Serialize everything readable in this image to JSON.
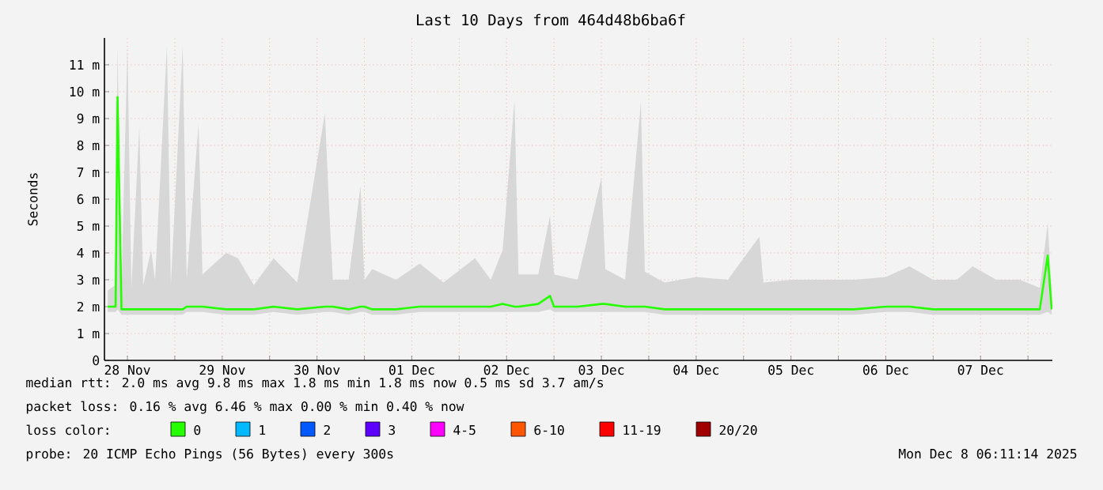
{
  "chart_data": {
    "type": "line",
    "title": "Last 10 Days from 464d48b6ba6f",
    "ylabel": "Seconds",
    "x": [
      "2025-11-28T07:00",
      "2025-11-28T09:00",
      "2025-11-28T09:30",
      "2025-11-28T10:30",
      "2025-11-28T12:00",
      "2025-11-28T13:00",
      "2025-11-28T15:00",
      "2025-11-28T16:00",
      "2025-11-28T18:00",
      "2025-11-28T19:00",
      "2025-11-28T22:00",
      "2025-11-28T23:00",
      "2025-11-29T02:00",
      "2025-11-29T03:00",
      "2025-11-29T06:00",
      "2025-11-29T07:00",
      "2025-11-29T13:00",
      "2025-11-29T16:00",
      "2025-11-29T20:00",
      "2025-11-30T01:00",
      "2025-11-30T07:00",
      "2025-11-30T14:00",
      "2025-11-30T15:00",
      "2025-11-30T16:00",
      "2025-11-30T20:00",
      "2025-11-30T23:00",
      "2025-12-01T00:00",
      "2025-12-01T02:00",
      "2025-12-01T08:00",
      "2025-12-01T14:00",
      "2025-12-01T20:00",
      "2025-12-02T04:00",
      "2025-12-02T08:00",
      "2025-12-02T11:00",
      "2025-12-02T14:00",
      "2025-12-02T15:00",
      "2025-12-02T20:00",
      "2025-12-02T23:00",
      "2025-12-03T00:00",
      "2025-12-03T06:00",
      "2025-12-03T12:00",
      "2025-12-03T13:00",
      "2025-12-03T18:00",
      "2025-12-03T22:00",
      "2025-12-03T23:00",
      "2025-12-04T04:00",
      "2025-12-04T12:00",
      "2025-12-04T20:00",
      "2025-12-05T04:00",
      "2025-12-05T05:00",
      "2025-12-05T12:00",
      "2025-12-05T20:00",
      "2025-12-06T04:00",
      "2025-12-06T12:00",
      "2025-12-06T18:00",
      "2025-12-07T00:00",
      "2025-12-07T06:00",
      "2025-12-07T10:00",
      "2025-12-07T16:00",
      "2025-12-07T22:00",
      "2025-12-08T03:00",
      "2025-12-08T05:00",
      "2025-12-08T06:00"
    ],
    "series": [
      {
        "name": "0",
        "color": "#26ff00",
        "values": [
          2.0,
          2.0,
          9.8,
          1.9,
          1.9,
          1.9,
          1.9,
          1.9,
          1.9,
          1.9,
          1.9,
          1.9,
          1.9,
          2.0,
          2.0,
          2.0,
          1.9,
          1.9,
          1.9,
          2.0,
          1.9,
          2.0,
          2.0,
          2.0,
          1.9,
          2.0,
          2.0,
          1.9,
          1.9,
          2.0,
          2.0,
          2.0,
          2.0,
          2.1,
          2.0,
          2.0,
          2.1,
          2.4,
          2.0,
          2.0,
          2.1,
          2.1,
          2.0,
          2.0,
          2.0,
          1.9,
          1.9,
          1.9,
          1.9,
          1.9,
          1.9,
          1.9,
          1.9,
          2.0,
          2.0,
          1.9,
          1.9,
          1.9,
          1.9,
          1.9,
          1.9,
          3.9,
          1.9
        ],
        "lower": [
          1.8,
          1.8,
          1.9,
          1.7,
          1.7,
          1.7,
          1.7,
          1.7,
          1.7,
          1.7,
          1.7,
          1.7,
          1.7,
          1.8,
          1.8,
          1.8,
          1.7,
          1.7,
          1.7,
          1.8,
          1.7,
          1.8,
          1.8,
          1.8,
          1.7,
          1.8,
          1.8,
          1.7,
          1.7,
          1.8,
          1.8,
          1.8,
          1.8,
          1.8,
          1.8,
          1.8,
          1.8,
          1.9,
          1.8,
          1.8,
          1.8,
          1.8,
          1.8,
          1.8,
          1.8,
          1.7,
          1.7,
          1.7,
          1.7,
          1.7,
          1.7,
          1.7,
          1.7,
          1.8,
          1.8,
          1.7,
          1.7,
          1.7,
          1.7,
          1.7,
          1.7,
          1.8,
          1.7
        ],
        "upper": [
          2.6,
          2.8,
          11.7,
          2.8,
          11.7,
          2.7,
          8.7,
          2.8,
          4.1,
          3.0,
          11.7,
          2.8,
          11.7,
          3.0,
          8.8,
          3.2,
          4.0,
          3.8,
          2.8,
          3.8,
          2.9,
          9.2,
          5.9,
          3.0,
          3.0,
          6.5,
          3.0,
          3.4,
          3.0,
          3.6,
          2.9,
          3.8,
          3.0,
          4.1,
          9.7,
          3.2,
          3.2,
          5.4,
          3.2,
          3.0,
          6.8,
          3.4,
          3.0,
          9.6,
          3.3,
          2.9,
          3.1,
          3.0,
          4.6,
          2.9,
          3.0,
          3.0,
          3.0,
          3.1,
          3.5,
          3.0,
          3.0,
          3.5,
          3.0,
          3.0,
          2.7,
          5.1,
          2.6
        ]
      },
      {
        "name": "1",
        "color": "#00b8ff",
        "values": [
          null,
          null,
          null,
          null,
          null,
          null,
          null,
          null,
          null,
          null,
          null,
          null,
          null,
          null,
          null,
          null,
          null,
          null,
          null,
          null,
          null,
          null,
          null,
          null,
          null,
          null,
          null,
          null,
          null,
          null,
          null,
          null,
          null,
          null,
          null,
          null,
          null,
          null,
          null,
          null,
          null,
          null,
          null,
          null,
          null,
          null,
          null,
          null,
          null,
          null,
          null,
          null,
          null,
          null,
          null,
          null,
          null,
          null,
          null,
          null,
          null,
          null,
          null
        ]
      },
      {
        "name": "2",
        "color": "#0059ff",
        "values": [
          null,
          null,
          null,
          null,
          null,
          null,
          null,
          null,
          null,
          null,
          null,
          null,
          null,
          null,
          null,
          null,
          null,
          null,
          null,
          null,
          null,
          null,
          null,
          null,
          null,
          null,
          null,
          null,
          null,
          null,
          null,
          null,
          null,
          null,
          null,
          null,
          null,
          null,
          null,
          null,
          null,
          null,
          null,
          null,
          null,
          null,
          null,
          null,
          null,
          null,
          null,
          null,
          null,
          null,
          null,
          null,
          null,
          null,
          null,
          null,
          null,
          null,
          null
        ]
      },
      {
        "name": "3",
        "color": "#5e00ff",
        "values": [
          null,
          null,
          null,
          null,
          null,
          null,
          null,
          null,
          null,
          null,
          null,
          null,
          null,
          null,
          null,
          null,
          null,
          null,
          null,
          null,
          null,
          null,
          null,
          null,
          null,
          null,
          null,
          null,
          null,
          null,
          null,
          null,
          null,
          null,
          null,
          null,
          null,
          null,
          null,
          null,
          null,
          null,
          null,
          null,
          null,
          null,
          null,
          null,
          null,
          null,
          null,
          null,
          null,
          null,
          null,
          null,
          null,
          null,
          null,
          null,
          null,
          null,
          null
        ]
      },
      {
        "name": "4-5",
        "color": "#ff00fe",
        "values": [
          null,
          null,
          null,
          null,
          null,
          null,
          null,
          null,
          null,
          null,
          null,
          null,
          null,
          null,
          null,
          null,
          null,
          null,
          null,
          null,
          null,
          null,
          null,
          null,
          null,
          null,
          null,
          null,
          null,
          null,
          null,
          null,
          null,
          null,
          null,
          null,
          null,
          null,
          null,
          null,
          null,
          null,
          null,
          null,
          null,
          null,
          null,
          null,
          null,
          null,
          null,
          null,
          null,
          null,
          null,
          null,
          null,
          null,
          null,
          null,
          null,
          null,
          null
        ]
      },
      {
        "name": "6-10",
        "color": "#ff5500",
        "values": [
          null,
          null,
          null,
          null,
          null,
          null,
          null,
          null,
          null,
          null,
          null,
          null,
          null,
          null,
          null,
          null,
          null,
          null,
          null,
          null,
          null,
          null,
          null,
          null,
          null,
          null,
          null,
          null,
          null,
          null,
          null,
          null,
          null,
          null,
          null,
          null,
          null,
          null,
          null,
          null,
          null,
          null,
          null,
          null,
          null,
          null,
          null,
          null,
          null,
          null,
          null,
          null,
          null,
          null,
          null,
          null,
          null,
          null,
          null,
          null,
          null,
          null,
          null
        ]
      },
      {
        "name": "11-19",
        "color": "#ff0000",
        "values": [
          null,
          null,
          null,
          null,
          null,
          null,
          null,
          null,
          null,
          null,
          null,
          null,
          null,
          null,
          null,
          null,
          null,
          null,
          null,
          null,
          null,
          null,
          null,
          null,
          null,
          null,
          null,
          null,
          null,
          null,
          null,
          null,
          null,
          null,
          null,
          null,
          null,
          null,
          null,
          null,
          null,
          null,
          null,
          null,
          null,
          null,
          null,
          null,
          null,
          null,
          null,
          null,
          null,
          null,
          null,
          null,
          null,
          null,
          null,
          null,
          null,
          null,
          null
        ]
      },
      {
        "name": "20/20",
        "color": "#a10000",
        "values": [
          null,
          null,
          null,
          null,
          null,
          null,
          null,
          null,
          null,
          null,
          null,
          null,
          null,
          null,
          null,
          null,
          null,
          null,
          null,
          null,
          null,
          null,
          null,
          null,
          null,
          null,
          null,
          null,
          null,
          null,
          null,
          null,
          null,
          null,
          null,
          null,
          null,
          null,
          null,
          null,
          null,
          null,
          null,
          null,
          null,
          null,
          null,
          null,
          null,
          null,
          null,
          null,
          null,
          null,
          null,
          null,
          null,
          null,
          null,
          null,
          null,
          null,
          null
        ]
      }
    ],
    "xlim": [
      "2025-11-28T06:11",
      "2025-12-08T06:11"
    ],
    "xticks": [
      {
        "value": "2025-11-28T12:00",
        "label": "28 Nov"
      },
      {
        "value": "2025-11-29T00:00",
        "label": null
      },
      {
        "value": "2025-11-29T12:00",
        "label": "29 Nov"
      },
      {
        "value": "2025-11-30T00:00",
        "label": null
      },
      {
        "value": "2025-11-30T12:00",
        "label": "30 Nov"
      },
      {
        "value": "2025-12-01T00:00",
        "label": null
      },
      {
        "value": "2025-12-01T12:00",
        "label": "01 Dec"
      },
      {
        "value": "2025-12-02T00:00",
        "label": null
      },
      {
        "value": "2025-12-02T12:00",
        "label": "02 Dec"
      },
      {
        "value": "2025-12-03T00:00",
        "label": null
      },
      {
        "value": "2025-12-03T12:00",
        "label": "03 Dec"
      },
      {
        "value": "2025-12-04T00:00",
        "label": null
      },
      {
        "value": "2025-12-04T12:00",
        "label": "04 Dec"
      },
      {
        "value": "2025-12-05T00:00",
        "label": null
      },
      {
        "value": "2025-12-05T12:00",
        "label": "05 Dec"
      },
      {
        "value": "2025-12-06T00:00",
        "label": null
      },
      {
        "value": "2025-12-06T12:00",
        "label": "06 Dec"
      },
      {
        "value": "2025-12-07T00:00",
        "label": null
      },
      {
        "value": "2025-12-07T12:00",
        "label": "07 Dec"
      },
      {
        "value": "2025-12-08T00:00",
        "label": null
      }
    ],
    "ylim": [
      0,
      12
    ],
    "yticks": [
      0,
      {
        "value": 1,
        "label": "1 m"
      },
      {
        "value": 2,
        "label": "2 m"
      },
      {
        "value": 3,
        "label": "3 m"
      },
      {
        "value": 4,
        "label": "4 m"
      },
      {
        "value": 5,
        "label": "5 m"
      },
      {
        "value": 6,
        "label": "6 m"
      },
      {
        "value": 7,
        "label": "7 m"
      },
      {
        "value": 8,
        "label": "8 m"
      },
      {
        "value": 9,
        "label": "9 m"
      },
      {
        "value": 10,
        "label": "10 m"
      },
      {
        "value": 11,
        "label": "11 m"
      }
    ],
    "grid": true,
    "legend": "bottom",
    "marker": "none",
    "line_style": "solid",
    "annotations": [
      "median rtt:  2.0 ms avg  9.8 ms max  1.8 ms min  1.8 ms now  0.5 ms sd  3.7   am/s",
      "packet loss: 0.16 % avg  6.46 % max  0.00 % min  0.40 % now",
      "loss color:",
      "probe:       20 ICMP Echo Pings (56 Bytes) every 300s",
      "Mon Dec  8 06:11:14 2025"
    ]
  }
}
